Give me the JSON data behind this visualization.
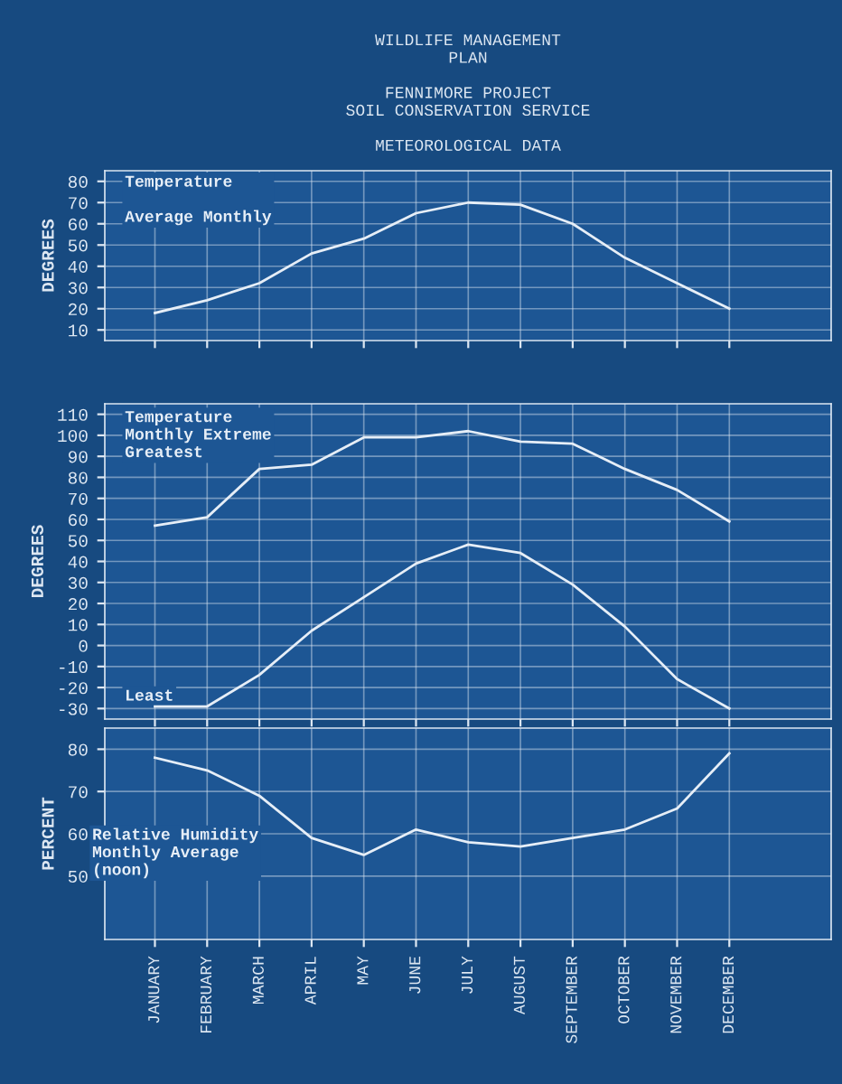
{
  "chart_data": [
    {
      "type": "line",
      "title": "WILDLIFE MANAGEMENT\nPLAN",
      "subtitle": "FENNIMORE PROJECT\nSOIL CONSERVATION SERVICE\n\nMETEOROLOGICAL DATA",
      "ylabel": "DEGREES",
      "categories": [
        null,
        null,
        null,
        null,
        null,
        null,
        null,
        null,
        null,
        null,
        null,
        null
      ],
      "series": [
        {
          "name": "Temperature\n\nAverage Monthly",
          "color": "#e6eef7",
          "values": [
            18,
            24,
            32,
            46,
            53,
            65,
            70,
            69,
            60,
            44,
            32,
            20
          ]
        }
      ],
      "ylim": [
        5,
        85
      ],
      "yticks": [
        10,
        20,
        30,
        40,
        50,
        60,
        70,
        80
      ],
      "grid": true,
      "tick_labels": "y"
    },
    {
      "type": "line",
      "ylabel": "DEGREES",
      "categories": [
        null,
        null,
        null,
        null,
        null,
        null,
        null,
        null,
        null,
        null,
        null,
        null
      ],
      "series": [
        {
          "name": "Temperature\nMonthly Extreme\nGreatest",
          "color": "#e6eef7",
          "values": [
            57,
            61,
            84,
            86,
            99,
            99,
            102,
            97,
            96,
            84,
            74,
            59
          ]
        },
        {
          "name": "Least",
          "color": "#e6eef7",
          "values": [
            -29,
            -29,
            -14,
            7,
            23,
            39,
            48,
            44,
            29,
            9,
            -16,
            -30
          ]
        }
      ],
      "ylim": [
        -35,
        115
      ],
      "yticks": [
        -30,
        -20,
        -10,
        0,
        10,
        20,
        30,
        40,
        50,
        60,
        70,
        80,
        90,
        100,
        110
      ],
      "grid": true,
      "tick_labels": "y"
    },
    {
      "type": "line",
      "ylabel": "PERCENT",
      "categories": [
        "JANUARY",
        "FEBRUARY",
        "MARCH",
        "APRIL",
        "MAY",
        "JUNE",
        "JULY",
        "AUGUST",
        "SEPTEMBER",
        "OCTOBER",
        "NOVEMBER",
        "DECEMBER"
      ],
      "series": [
        {
          "name": "Relative Humidity\nMonthly Average\n(noon)",
          "color": "#e6eef7",
          "values": [
            78,
            75,
            69,
            59,
            55,
            61,
            58,
            57,
            59,
            61,
            66,
            79
          ]
        }
      ],
      "ylim": [
        35,
        85
      ],
      "yticks": [
        50,
        60,
        70,
        80
      ],
      "grid": true
    }
  ]
}
